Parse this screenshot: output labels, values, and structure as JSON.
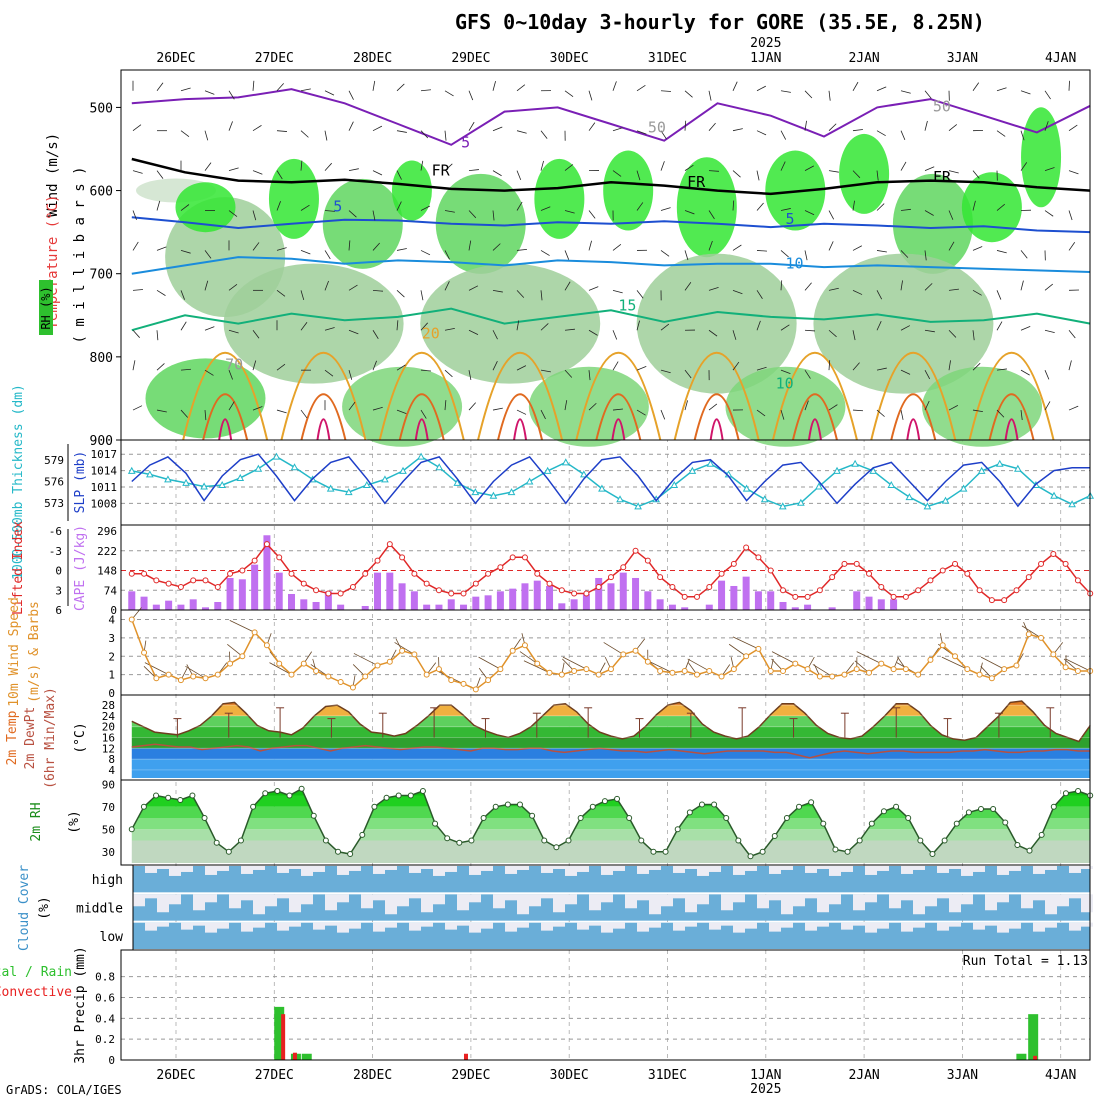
{
  "page": {
    "title": "GFS 0~10day 3-hourly for GORE (35.5E, 8.25N)",
    "credit": "GrADS: COLA/IGES",
    "year_label": "2025"
  },
  "chart_data": {
    "type": "meteogram",
    "dates": [
      "26DEC",
      "27DEC",
      "28DEC",
      "29DEC",
      "30DEC",
      "31DEC",
      "1JAN",
      "2JAN",
      "3JAN",
      "4JAN"
    ],
    "x_range_days": [
      -0.45,
      9.3
    ],
    "panels": [
      {
        "id": "upper-air",
        "type": "contour-crosssection",
        "ylabels": [
          "Wind (m/s)",
          "Temperature (°C)",
          "RH (%)",
          "( m i l l i b a r s )"
        ],
        "y_ticks": [
          500,
          600,
          700,
          800,
          900
        ],
        "ylim": [
          455,
          900
        ],
        "labels": [
          "FR",
          "FR",
          "FR",
          "5",
          "5",
          "5",
          "10",
          "15",
          "20",
          "50",
          "50",
          "70",
          "10"
        ],
        "isotherms": [
          {
            "name": "0",
            "color": "#000000",
            "p": [
              562,
              578,
              588,
              590,
              587,
              592,
              598,
              600,
              597,
              590,
              594,
              600,
              604,
              598,
              590,
              588,
              590,
              596,
              600
            ]
          },
          {
            "name": "-5",
            "color": "#7a1fb5",
            "p": [
              495,
              490,
              488,
              478,
              495,
              520,
              545,
              505,
              500,
              520,
              540,
              495,
              510,
              535,
              500,
              490,
              510,
              530,
              498
            ]
          },
          {
            "name": "5",
            "color": "#1d4fd0",
            "p": [
              632,
              638,
              645,
              640,
              635,
              636,
              640,
              642,
              638,
              640,
              637,
              640,
              644,
              640,
              642,
              645,
              643,
              648,
              650
            ]
          },
          {
            "name": "10",
            "color": "#1a8cdc",
            "p": [
              700,
              690,
              680,
              682,
              688,
              684,
              686,
              690,
              684,
              686,
              690,
              688,
              688,
              692,
              690,
              692,
              694,
              696,
              698
            ]
          },
          {
            "name": "15",
            "color": "#12b07a",
            "p": [
              768,
              750,
              760,
              748,
              756,
              752,
              742,
              760,
              752,
              744,
              758,
              746,
              752,
              755,
              749,
              758,
              756,
              748,
              760
            ]
          }
        ]
      },
      {
        "id": "slp-thickness",
        "type": "line",
        "ylabels": [
          "1000-500mb Thickness (dm)",
          "SLP (mb)"
        ],
        "left_ticks": [
          573,
          576,
          579
        ],
        "right_ticks": [
          1008,
          1011,
          1014,
          1017
        ],
        "series": [
          {
            "name": "SLP (mb)",
            "color": "#1e3fc8",
            "axis": "right",
            "values": [
              1012.0,
              1015.0,
              1016.5,
              1013.5,
              1008.5,
              1013.0,
              1016.0,
              1017.0,
              1013.0,
              1008.5,
              1012.5,
              1015.5,
              1016.5,
              1012.5,
              1008.0,
              1012.0,
              1015.5,
              1016.5,
              1012.5,
              1008.0,
              1012.0,
              1015.0,
              1016.5,
              1012.5,
              1008.0,
              1012.5,
              1016.0,
              1016.5,
              1013.0,
              1008.5,
              1012.5,
              1015.5,
              1016.0,
              1013.0,
              1008.5,
              1012.0,
              1015.0,
              1015.5,
              1012.0,
              1008.0,
              1011.5,
              1014.5,
              1015.5,
              1012.0,
              1008.5,
              1012.0,
              1015.0,
              1015.5,
              1012.0,
              1007.5,
              1011.5,
              1014.0,
              1014.5,
              1014.5
            ]
          },
          {
            "name": "1000-500mb Thickness (dm)",
            "color": "#25b8c8",
            "axis": "left",
            "values": [
              577.5,
              577.0,
              576.3,
              575.8,
              575.3,
              575.5,
              576.5,
              577.8,
              579.5,
              578.0,
              576.3,
              575.0,
              574.5,
              575.5,
              576.3,
              577.5,
              579.5,
              578.0,
              575.8,
              574.5,
              574.0,
              574.5,
              576.0,
              577.5,
              578.7,
              577.0,
              575.0,
              573.5,
              572.5,
              573.5,
              575.5,
              577.5,
              578.5,
              577.0,
              575.0,
              573.5,
              572.5,
              573.0,
              575.3,
              577.5,
              578.5,
              577.5,
              575.5,
              573.8,
              572.5,
              573.3,
              575.0,
              577.5,
              578.5,
              577.8,
              575.5,
              574.0,
              572.8,
              574.0
            ]
          }
        ]
      },
      {
        "id": "stability",
        "type": "bar+line",
        "ylabels": [
          "Lifted Index",
          "CAPE (J/kg)"
        ],
        "left_ticks": [
          -6,
          -3,
          0,
          3,
          6
        ],
        "right_ticks": [
          0,
          74,
          148,
          222,
          296
        ],
        "series": [
          {
            "name": "CAPE (J/kg)",
            "color": "#c070f0",
            "kind": "bar",
            "values": [
              70,
              50,
              20,
              35,
              20,
              40,
              10,
              30,
              120,
              115,
              170,
              280,
              140,
              60,
              40,
              30,
              70,
              20,
              0,
              15,
              140,
              140,
              100,
              70,
              20,
              20,
              40,
              20,
              50,
              55,
              70,
              80,
              100,
              110,
              90,
              25,
              40,
              60,
              120,
              100,
              140,
              120,
              70,
              40,
              20,
              10,
              0,
              20,
              110,
              90,
              125,
              70,
              70,
              30,
              10,
              20,
              0,
              10,
              0,
              70,
              50,
              40,
              40,
              0,
              0,
              0,
              0,
              0,
              0,
              0,
              0,
              0,
              0,
              0,
              0,
              0,
              0,
              0,
              0
            ]
          },
          {
            "name": "Lifted Index",
            "color": "#e02828",
            "kind": "line",
            "values": [
              0.5,
              0.5,
              1.5,
              2.0,
              2.5,
              1.5,
              1.5,
              2.5,
              0.5,
              0.0,
              -1.5,
              -4.0,
              -2.0,
              0.5,
              2.0,
              3.0,
              3.5,
              3.5,
              2.5,
              0.5,
              -1.5,
              -4.0,
              -2.0,
              0.5,
              2.0,
              3.0,
              3.5,
              3.5,
              2.0,
              0.5,
              -0.5,
              -2.0,
              -2.0,
              0.5,
              2.0,
              3.0,
              3.5,
              3.5,
              2.5,
              1.0,
              -0.5,
              -3.0,
              -1.5,
              1.0,
              2.5,
              4.0,
              4.0,
              2.5,
              0.5,
              -1.0,
              -3.5,
              -2.0,
              0.0,
              3.0,
              4.0,
              4.0,
              3.0,
              1.0,
              -1.0,
              -1.0,
              0.5,
              2.5,
              4.0,
              4.0,
              3.0,
              1.5,
              0.0,
              -1.0,
              0.5,
              3.0,
              4.5,
              4.5,
              3.0,
              1.0,
              -1.0,
              -2.5,
              -1.0,
              1.5,
              3.5
            ]
          }
        ]
      },
      {
        "id": "wind10m",
        "type": "line",
        "ylabels": [
          "10m Wind Speed",
          "(m/s) & Barbs"
        ],
        "y_ticks": [
          0,
          1,
          2,
          3,
          4
        ],
        "series": [
          {
            "name": "10m Wind Speed (m/s)",
            "color": "#e0922a",
            "values": [
              4.0,
              2.2,
              0.8,
              1.0,
              0.7,
              0.9,
              0.8,
              1.0,
              1.6,
              2.0,
              3.3,
              2.6,
              1.6,
              1.0,
              1.6,
              1.2,
              0.9,
              0.6,
              0.3,
              0.9,
              1.5,
              1.7,
              2.3,
              2.1,
              1.0,
              1.3,
              0.7,
              0.5,
              0.2,
              0.7,
              1.3,
              2.3,
              2.6,
              1.6,
              1.1,
              1.0,
              1.2,
              1.3,
              1.0,
              1.3,
              2.1,
              2.3,
              1.7,
              1.2,
              1.1,
              1.2,
              1.0,
              1.2,
              0.9,
              1.3,
              2.0,
              2.4,
              1.2,
              1.2,
              1.6,
              1.3,
              0.9,
              0.9,
              1.0,
              1.3,
              1.1,
              1.6,
              1.3,
              1.3,
              1.0,
              1.8,
              2.6,
              2.0,
              1.3,
              1.0,
              0.8,
              1.3,
              1.5,
              3.2,
              3.0,
              2.1,
              1.4,
              1.2,
              1.2
            ]
          }
        ]
      },
      {
        "id": "temp2m",
        "type": "area",
        "ylabels": [
          "2m Temp",
          "2m DewPt",
          "(6hr Min/Max)",
          "(°C)"
        ],
        "y_ticks": [
          4,
          8,
          12,
          16,
          20,
          24,
          28
        ],
        "series": [
          {
            "name": "2m Temp",
            "color": "#6e3e1e",
            "values": [
              22.0,
              20.0,
              18.0,
              17.5,
              17.0,
              18.5,
              20.5,
              24.0,
              28.5,
              29.0,
              25.0,
              20.5,
              18.5,
              18.0,
              17.0,
              19.5,
              24.0,
              27.5,
              28.0,
              25.5,
              21.0,
              18.0,
              17.5,
              16.5,
              17.5,
              20.5,
              24.0,
              28.0,
              28.0,
              24.5,
              20.5,
              18.5,
              17.0,
              16.0,
              17.5,
              20.0,
              24.0,
              28.0,
              28.5,
              25.5,
              21.0,
              18.0,
              16.5,
              15.5,
              16.5,
              20.0,
              24.5,
              28.0,
              29.0,
              26.0,
              21.0,
              18.0,
              16.5,
              15.5,
              16.5,
              20.0,
              24.5,
              28.5,
              28.5,
              25.0,
              20.5,
              17.5,
              16.0,
              15.5,
              16.5,
              20.0,
              24.0,
              28.5,
              28.5,
              25.5,
              20.5,
              17.0,
              15.5,
              15.0,
              16.0,
              20.0,
              24.0,
              29.0,
              29.5,
              25.5,
              20.5,
              17.5,
              16.0,
              14.5,
              20.5
            ]
          },
          {
            "name": "2m DewPt",
            "color": "#b85040",
            "values": [
              12.5,
              13.0,
              13.5,
              13.0,
              12.5,
              12.5,
              11.5,
              12.0,
              12.5,
              13.0,
              12.5,
              11.0,
              12.0,
              12.5,
              13.0,
              13.0,
              12.0,
              11.0,
              12.0,
              12.5,
              13.0,
              12.5,
              12.0,
              11.5,
              12.0,
              12.5,
              12.5,
              12.0,
              11.5,
              11.0,
              12.0,
              12.0,
              11.5,
              11.5,
              12.0,
              12.0,
              11.0,
              10.5,
              11.0,
              11.5,
              12.0,
              11.5,
              11.0,
              11.0,
              10.5,
              11.0,
              11.5,
              11.0,
              10.5,
              10.0,
              10.5,
              11.0,
              11.0,
              11.0,
              11.0,
              10.5,
              10.5,
              9.5,
              8.5,
              9.5,
              10.5,
              11.0,
              10.5,
              10.0,
              10.5,
              11.0,
              11.0,
              10.5,
              10.5,
              10.5,
              10.5,
              11.0,
              11.0,
              11.5,
              11.0,
              10.5,
              10.5,
              11.0,
              11.0,
              11.5,
              11.5,
              11.0,
              11.0
            ]
          }
        ]
      },
      {
        "id": "rh2m",
        "type": "area",
        "ylabels": [
          "2m RH",
          "(%)"
        ],
        "y_ticks": [
          30,
          50,
          70,
          90
        ],
        "series": [
          {
            "name": "2m RH (%)",
            "color": "#1a8c1a",
            "values": [
              50,
              70,
              80,
              78,
              76,
              80,
              60,
              38,
              30,
              40,
              70,
              82,
              84,
              80,
              86,
              62,
              40,
              30,
              28,
              45,
              70,
              78,
              80,
              80,
              84,
              55,
              42,
              38,
              40,
              60,
              70,
              72,
              72,
              62,
              40,
              34,
              40,
              60,
              70,
              75,
              77,
              60,
              40,
              30,
              30,
              50,
              65,
              72,
              72,
              60,
              40,
              26,
              30,
              44,
              60,
              70,
              74,
              55,
              32,
              30,
              40,
              55,
              66,
              70,
              60,
              40,
              28,
              40,
              55,
              65,
              68,
              68,
              56,
              36,
              31,
              45,
              70,
              82,
              84,
              80
            ]
          }
        ]
      },
      {
        "id": "cloud",
        "type": "table",
        "ylabels": [
          "Cloud Cover",
          "(%)"
        ],
        "rows": [
          "high",
          "middle",
          "low"
        ]
      },
      {
        "id": "precip",
        "type": "bar",
        "ylabels": [
          "3hr Precip (mm)",
          "Total / Rain",
          "Convective"
        ],
        "y_ticks": [
          0,
          0.2,
          0.4,
          0.6,
          0.8
        ],
        "annotation": "Run Total = 1.13",
        "series": [
          {
            "name": "Total / Rain",
            "color": "#2ec02e",
            "values": [
              {
                "day": 1.05,
                "v": 0.51
              },
              {
                "day": 1.22,
                "v": 0.06
              },
              {
                "day": 1.33,
                "v": 0.06
              },
              {
                "day": 8.6,
                "v": 0.06
              },
              {
                "day": 8.72,
                "v": 0.44
              }
            ]
          },
          {
            "name": "Convective",
            "color": "#e82020",
            "values": [
              {
                "day": 1.09,
                "v": 0.44
              },
              {
                "day": 1.21,
                "v": 0.07
              },
              {
                "day": 2.95,
                "v": 0.06
              },
              {
                "day": 8.74,
                "v": 0.04
              }
            ]
          }
        ]
      }
    ]
  }
}
